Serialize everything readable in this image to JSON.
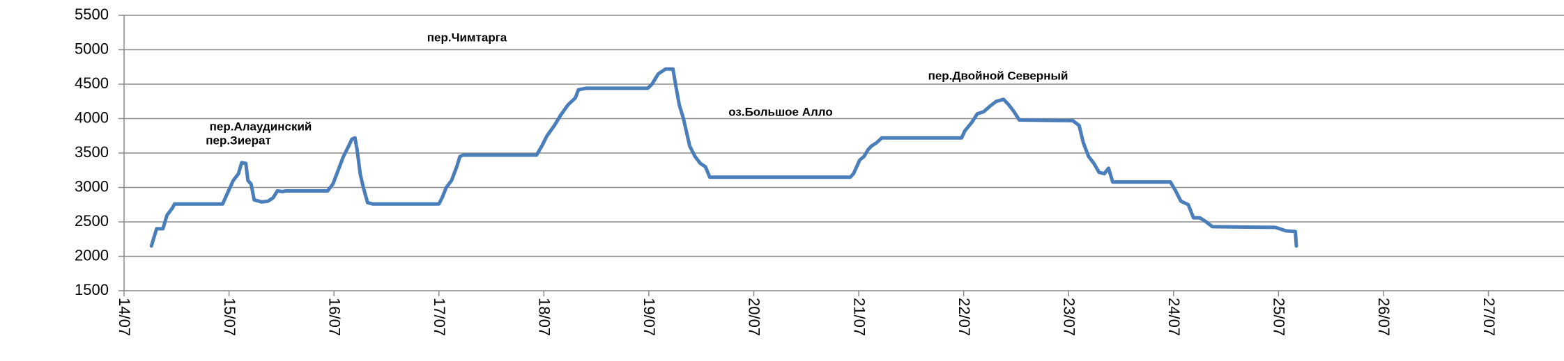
{
  "chart_data": {
    "type": "line",
    "x": [
      14.26,
      14.28,
      14.31,
      14.37,
      14.41,
      14.46,
      14.48,
      14.94,
      14.98,
      15.04,
      15.09,
      15.12,
      15.16,
      15.18,
      15.21,
      15.24,
      15.31,
      15.37,
      15.42,
      15.46,
      15.51,
      15.54,
      15.94,
      15.99,
      16.04,
      16.09,
      16.14,
      16.17,
      16.2,
      16.22,
      16.25,
      16.28,
      16.32,
      16.37,
      17.0,
      17.03,
      17.07,
      17.12,
      17.17,
      17.2,
      17.23,
      17.93,
      17.98,
      18.03,
      18.1,
      18.16,
      18.23,
      18.3,
      18.33,
      18.4,
      18.99,
      19.03,
      19.09,
      19.16,
      19.23,
      19.26,
      19.29,
      19.33,
      19.36,
      19.39,
      19.44,
      19.49,
      19.54,
      19.58,
      20.92,
      20.95,
      21.01,
      21.05,
      21.09,
      21.12,
      21.17,
      21.22,
      21.98,
      22.01,
      22.08,
      22.13,
      22.19,
      22.25,
      22.31,
      22.38,
      22.43,
      22.48,
      22.53,
      23.04,
      23.1,
      23.14,
      23.19,
      23.24,
      23.29,
      23.34,
      23.38,
      23.42,
      23.97,
      24.02,
      24.07,
      24.14,
      24.19,
      24.25,
      24.31,
      24.37,
      24.97,
      25.07,
      25.16,
      25.17
    ],
    "values": [
      2150,
      2250,
      2400,
      2400,
      2600,
      2700,
      2760,
      2760,
      2900,
      3100,
      3200,
      3360,
      3350,
      3100,
      3050,
      2820,
      2790,
      2800,
      2850,
      2950,
      2940,
      2950,
      2950,
      3050,
      3250,
      3450,
      3600,
      3700,
      3720,
      3550,
      3200,
      3000,
      2780,
      2760,
      2760,
      2850,
      3000,
      3100,
      3300,
      3450,
      3470,
      3470,
      3600,
      3750,
      3900,
      4050,
      4200,
      4300,
      4420,
      4440,
      4440,
      4500,
      4650,
      4720,
      4720,
      4450,
      4200,
      4000,
      3800,
      3600,
      3450,
      3350,
      3300,
      3150,
      3150,
      3200,
      3400,
      3450,
      3550,
      3600,
      3650,
      3720,
      3720,
      3820,
      3950,
      4070,
      4100,
      4180,
      4250,
      4280,
      4200,
      4100,
      3980,
      3970,
      3900,
      3650,
      3450,
      3350,
      3220,
      3200,
      3280,
      3080,
      3080,
      2950,
      2800,
      2750,
      2560,
      2560,
      2500,
      2430,
      2420,
      2370,
      2360,
      2150
    ],
    "color": "#4a7ebb",
    "xlim": [
      14,
      27.72
    ],
    "xticks": [
      {
        "value": 14,
        "label": "14/07"
      },
      {
        "value": 15,
        "label": "15/07"
      },
      {
        "value": 16,
        "label": "16/07"
      },
      {
        "value": 17,
        "label": "17/07"
      },
      {
        "value": 18,
        "label": "18/07"
      },
      {
        "value": 19,
        "label": "19/07"
      },
      {
        "value": 20,
        "label": "20/07"
      },
      {
        "value": 21,
        "label": "21/07"
      },
      {
        "value": 22,
        "label": "22/07"
      },
      {
        "value": 23,
        "label": "23/07"
      },
      {
        "value": 24,
        "label": "24/07"
      },
      {
        "value": 25,
        "label": "25/07"
      },
      {
        "value": 26,
        "label": "26/07"
      },
      {
        "value": 27,
        "label": "27/07"
      }
    ],
    "ylim": [
      1500,
      5500
    ],
    "yticks": [
      1500,
      2000,
      2500,
      3000,
      3500,
      4000,
      4500,
      5000,
      5500
    ],
    "grid": true,
    "annotations": [
      "пер.Зиерат",
      "пер.Алаудинский",
      "пер.Чимтарга",
      "оз.Большое Алло",
      "пер.Двойной Северный"
    ]
  }
}
